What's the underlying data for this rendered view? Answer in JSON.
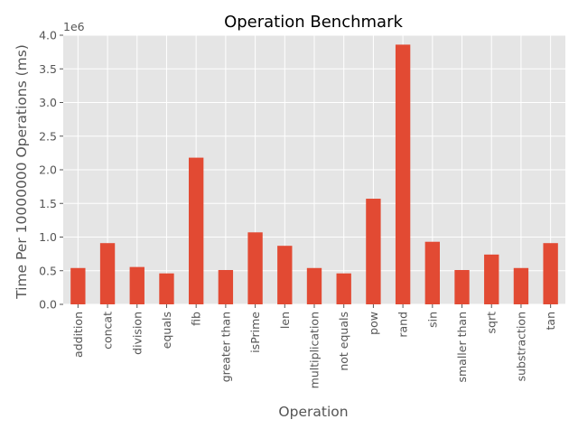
{
  "chart_data": {
    "type": "bar",
    "title": "Operation Benchmark",
    "xlabel": "Operation",
    "ylabel": "Time Per 10000000 Operations (ms)",
    "y_offset_label": "1e6",
    "ylim": [
      0,
      4000000
    ],
    "yticks": [
      0,
      500000,
      1000000,
      1500000,
      2000000,
      2500000,
      3000000,
      3500000,
      4000000
    ],
    "ytick_labels": [
      "0.0",
      "0.5",
      "1.0",
      "1.5",
      "2.0",
      "2.5",
      "3.0",
      "3.5",
      "4.0"
    ],
    "grid": true,
    "bar_color": "#E24A33",
    "background_color": "#E5E5E5",
    "grid_color": "#FFFFFF",
    "categories": [
      "addition",
      "concat",
      "division",
      "equals",
      "fib",
      "greater than",
      "isPrime",
      "len",
      "multiplication",
      "not equals",
      "pow",
      "rand",
      "sin",
      "smaller than",
      "sqrt",
      "substraction",
      "tan"
    ],
    "values": [
      540000,
      910000,
      555000,
      460000,
      2180000,
      510000,
      1070000,
      870000,
      540000,
      460000,
      1570000,
      3860000,
      930000,
      510000,
      740000,
      540000,
      910000
    ]
  }
}
